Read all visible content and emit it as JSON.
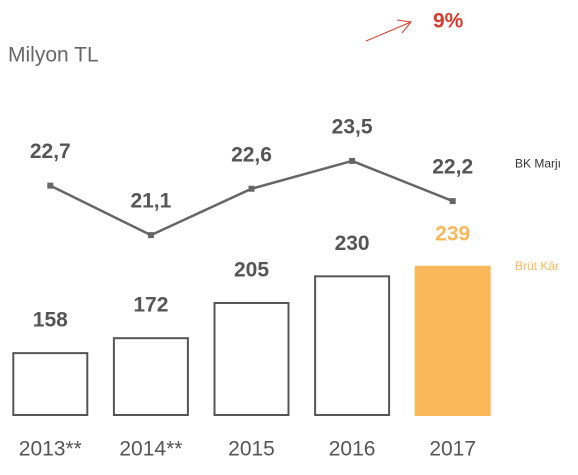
{
  "chart_data": {
    "type": "bar-line",
    "subtitle": "Milyon TL",
    "annotation": {
      "value": 9,
      "label": "9%"
    },
    "categories": [
      "2013**",
      "2014**",
      "2015",
      "2016",
      "2017"
    ],
    "series": [
      {
        "name": "Brüt Kâr",
        "type": "bar",
        "color": "#fbb85b",
        "outline": "#555555",
        "highlight_index": 4,
        "values": [
          158,
          172,
          205,
          230,
          239
        ]
      },
      {
        "name": "BK Marjı",
        "type": "line",
        "axis": "y2",
        "color": "#666666",
        "values": [
          22.7,
          21.1,
          22.6,
          23.5,
          22.2
        ],
        "value_labels": [
          "22,7",
          "21,1",
          "22,6",
          "23,5",
          "22,2"
        ]
      }
    ],
    "ylim": [
      100,
      250
    ],
    "y2lim": [
      19,
      24.5
    ],
    "grid": false
  }
}
